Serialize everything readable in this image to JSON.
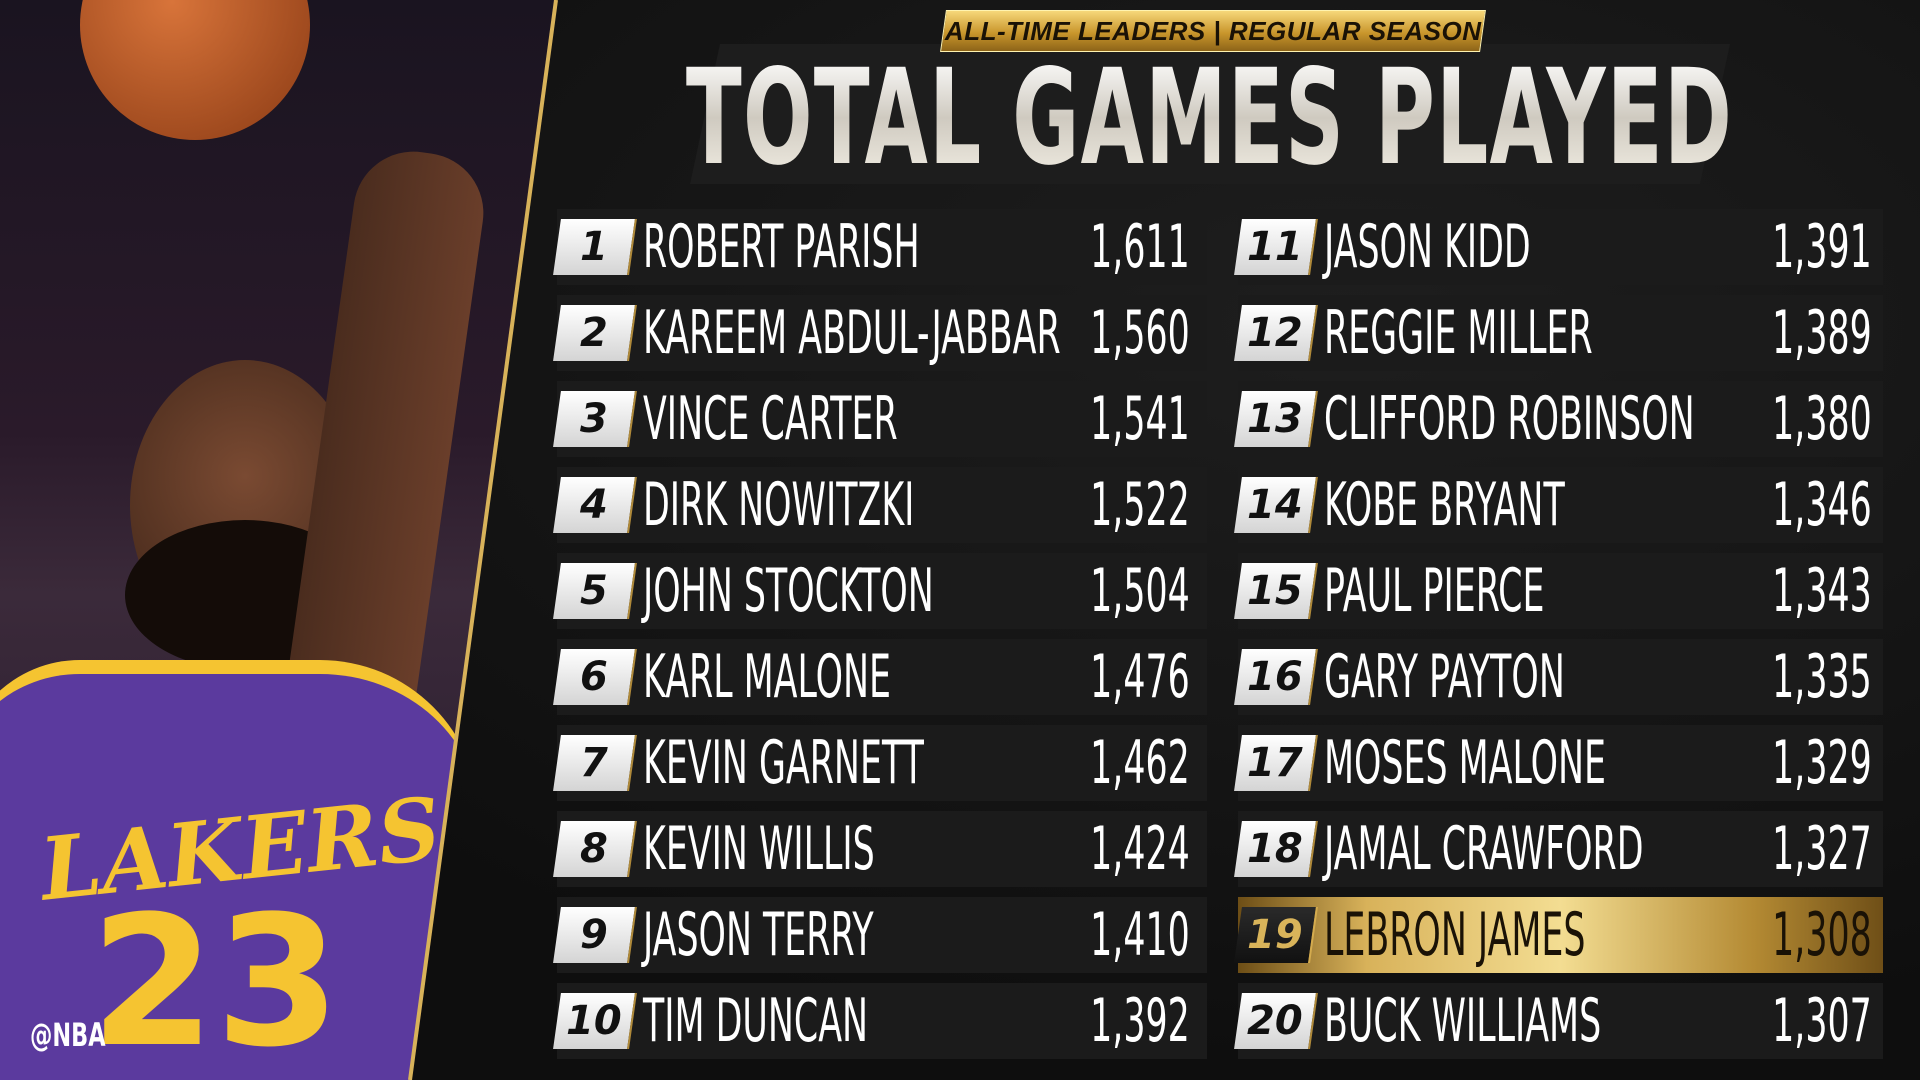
{
  "header": {
    "badge": "ALL-TIME LEADERS | REGULAR SEASON",
    "title": "TOTAL GAMES PLAYED"
  },
  "watermark": "@NBA",
  "photo": {
    "jersey_text": "LAKERS",
    "jersey_number": "23",
    "jersey_color": "#5b3a9e",
    "trim_color": "#f5c431"
  },
  "colors": {
    "gold": "#d8b25a",
    "background": "#0d0d0d",
    "row": "#1b1b1b"
  },
  "leaders": [
    {
      "rank": "1",
      "name": "ROBERT PARISH",
      "games": "1,611"
    },
    {
      "rank": "2",
      "name": "KAREEM ABDUL-JABBAR",
      "games": "1,560"
    },
    {
      "rank": "3",
      "name": "VINCE CARTER",
      "games": "1,541"
    },
    {
      "rank": "4",
      "name": "DIRK NOWITZKI",
      "games": "1,522"
    },
    {
      "rank": "5",
      "name": "JOHN STOCKTON",
      "games": "1,504"
    },
    {
      "rank": "6",
      "name": "KARL MALONE",
      "games": "1,476"
    },
    {
      "rank": "7",
      "name": "KEVIN GARNETT",
      "games": "1,462"
    },
    {
      "rank": "8",
      "name": "KEVIN WILLIS",
      "games": "1,424"
    },
    {
      "rank": "9",
      "name": "JASON TERRY",
      "games": "1,410"
    },
    {
      "rank": "10",
      "name": "TIM DUNCAN",
      "games": "1,392"
    },
    {
      "rank": "11",
      "name": "JASON KIDD",
      "games": "1,391"
    },
    {
      "rank": "12",
      "name": "REGGIE MILLER",
      "games": "1,389"
    },
    {
      "rank": "13",
      "name": "CLIFFORD ROBINSON",
      "games": "1,380"
    },
    {
      "rank": "14",
      "name": "KOBE BRYANT",
      "games": "1,346"
    },
    {
      "rank": "15",
      "name": "PAUL PIERCE",
      "games": "1,343"
    },
    {
      "rank": "16",
      "name": "GARY PAYTON",
      "games": "1,335"
    },
    {
      "rank": "17",
      "name": "MOSES MALONE",
      "games": "1,329"
    },
    {
      "rank": "18",
      "name": "JAMAL CRAWFORD",
      "games": "1,327"
    },
    {
      "rank": "19",
      "name": "LEBRON JAMES",
      "games": "1,308",
      "highlighted": true
    },
    {
      "rank": "20",
      "name": "BUCK WILLIAMS",
      "games": "1,307"
    }
  ]
}
